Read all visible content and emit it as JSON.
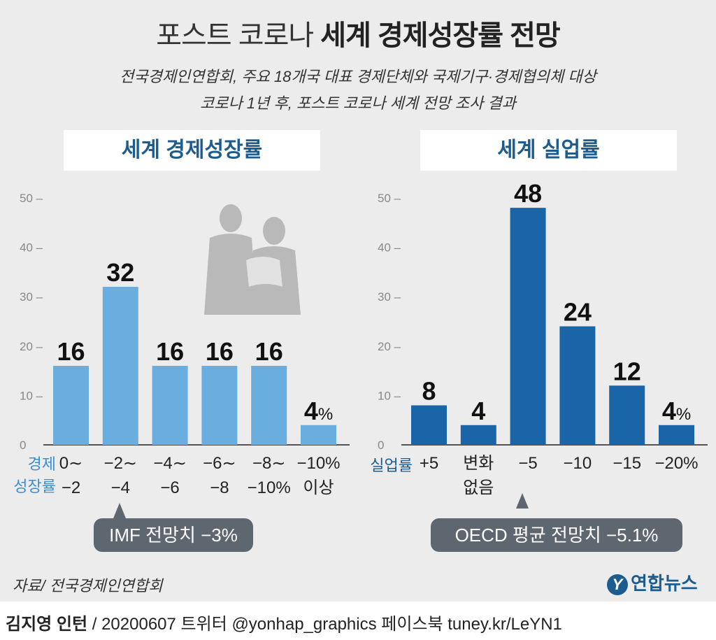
{
  "header": {
    "title_light": "포스트 코로나",
    "title_bold": "세계 경제성장률 전망",
    "subtitle_1": "전국경제인연합회, 주요 18개국 대표 경제단체와 국제기구·경제협의체 대상",
    "subtitle_2": "코로나 1년 후, 포스트 코로나 세계 전망 조사 결과"
  },
  "left_panel": {
    "title": "세계 경제성장률",
    "axis_name_1": "경제",
    "axis_name_2": "성장률",
    "callout": "IMF 전망치 −3%"
  },
  "right_panel": {
    "title": "세계 실업률",
    "axis_name": "실업률",
    "callout": "OECD 평균 전망치 −5.1%"
  },
  "source": "자료/ 전국경제인연합회",
  "logo": {
    "mark": "Y",
    "text": "연합뉴스"
  },
  "footer": {
    "author": "김지영 인턴",
    "rest": " / 20200607  트위터 @yonhap_graphics  페이스북 tuney.kr/LeYN1"
  },
  "colors": {
    "left_bar": "#6aaee0",
    "right_bar": "#1a64a8",
    "title_blue": "#1d5c8f",
    "callout_bg": "#5e6670"
  },
  "chart_data": [
    {
      "type": "bar",
      "title": "세계 경제성장률",
      "categories": [
        [
          "0∼",
          "−2"
        ],
        [
          "−2∼",
          "−4"
        ],
        [
          "−4∼",
          "−6"
        ],
        [
          "−6∼",
          "−8"
        ],
        [
          "−8∼",
          "−10%"
        ],
        [
          "−10%",
          "이상"
        ]
      ],
      "values": [
        16,
        32,
        16,
        16,
        16,
        4
      ],
      "value_labels": [
        "16",
        "32",
        "16",
        "16",
        "16",
        "4%"
      ],
      "ylim": [
        0,
        50
      ],
      "yticks": [
        0,
        10,
        20,
        30,
        40,
        50
      ],
      "ytick_labels": [
        "0",
        "10 –",
        "20 –",
        "30 –",
        "40 –",
        "50 –"
      ],
      "grid": false
    },
    {
      "type": "bar",
      "title": "세계 실업률",
      "categories": [
        [
          "+5"
        ],
        [
          "변화",
          "없음"
        ],
        [
          "−5"
        ],
        [
          "−10"
        ],
        [
          "−15"
        ],
        [
          "−20%"
        ]
      ],
      "values": [
        8,
        4,
        48,
        24,
        12,
        4
      ],
      "value_labels": [
        "8",
        "4",
        "48",
        "24",
        "12",
        "4%"
      ],
      "ylim": [
        0,
        50
      ],
      "yticks": [
        0,
        10,
        20,
        30,
        40,
        50
      ],
      "ytick_labels": [
        "0",
        "10 –",
        "20 –",
        "30 –",
        "40 –",
        "50 –"
      ],
      "grid": false
    }
  ]
}
